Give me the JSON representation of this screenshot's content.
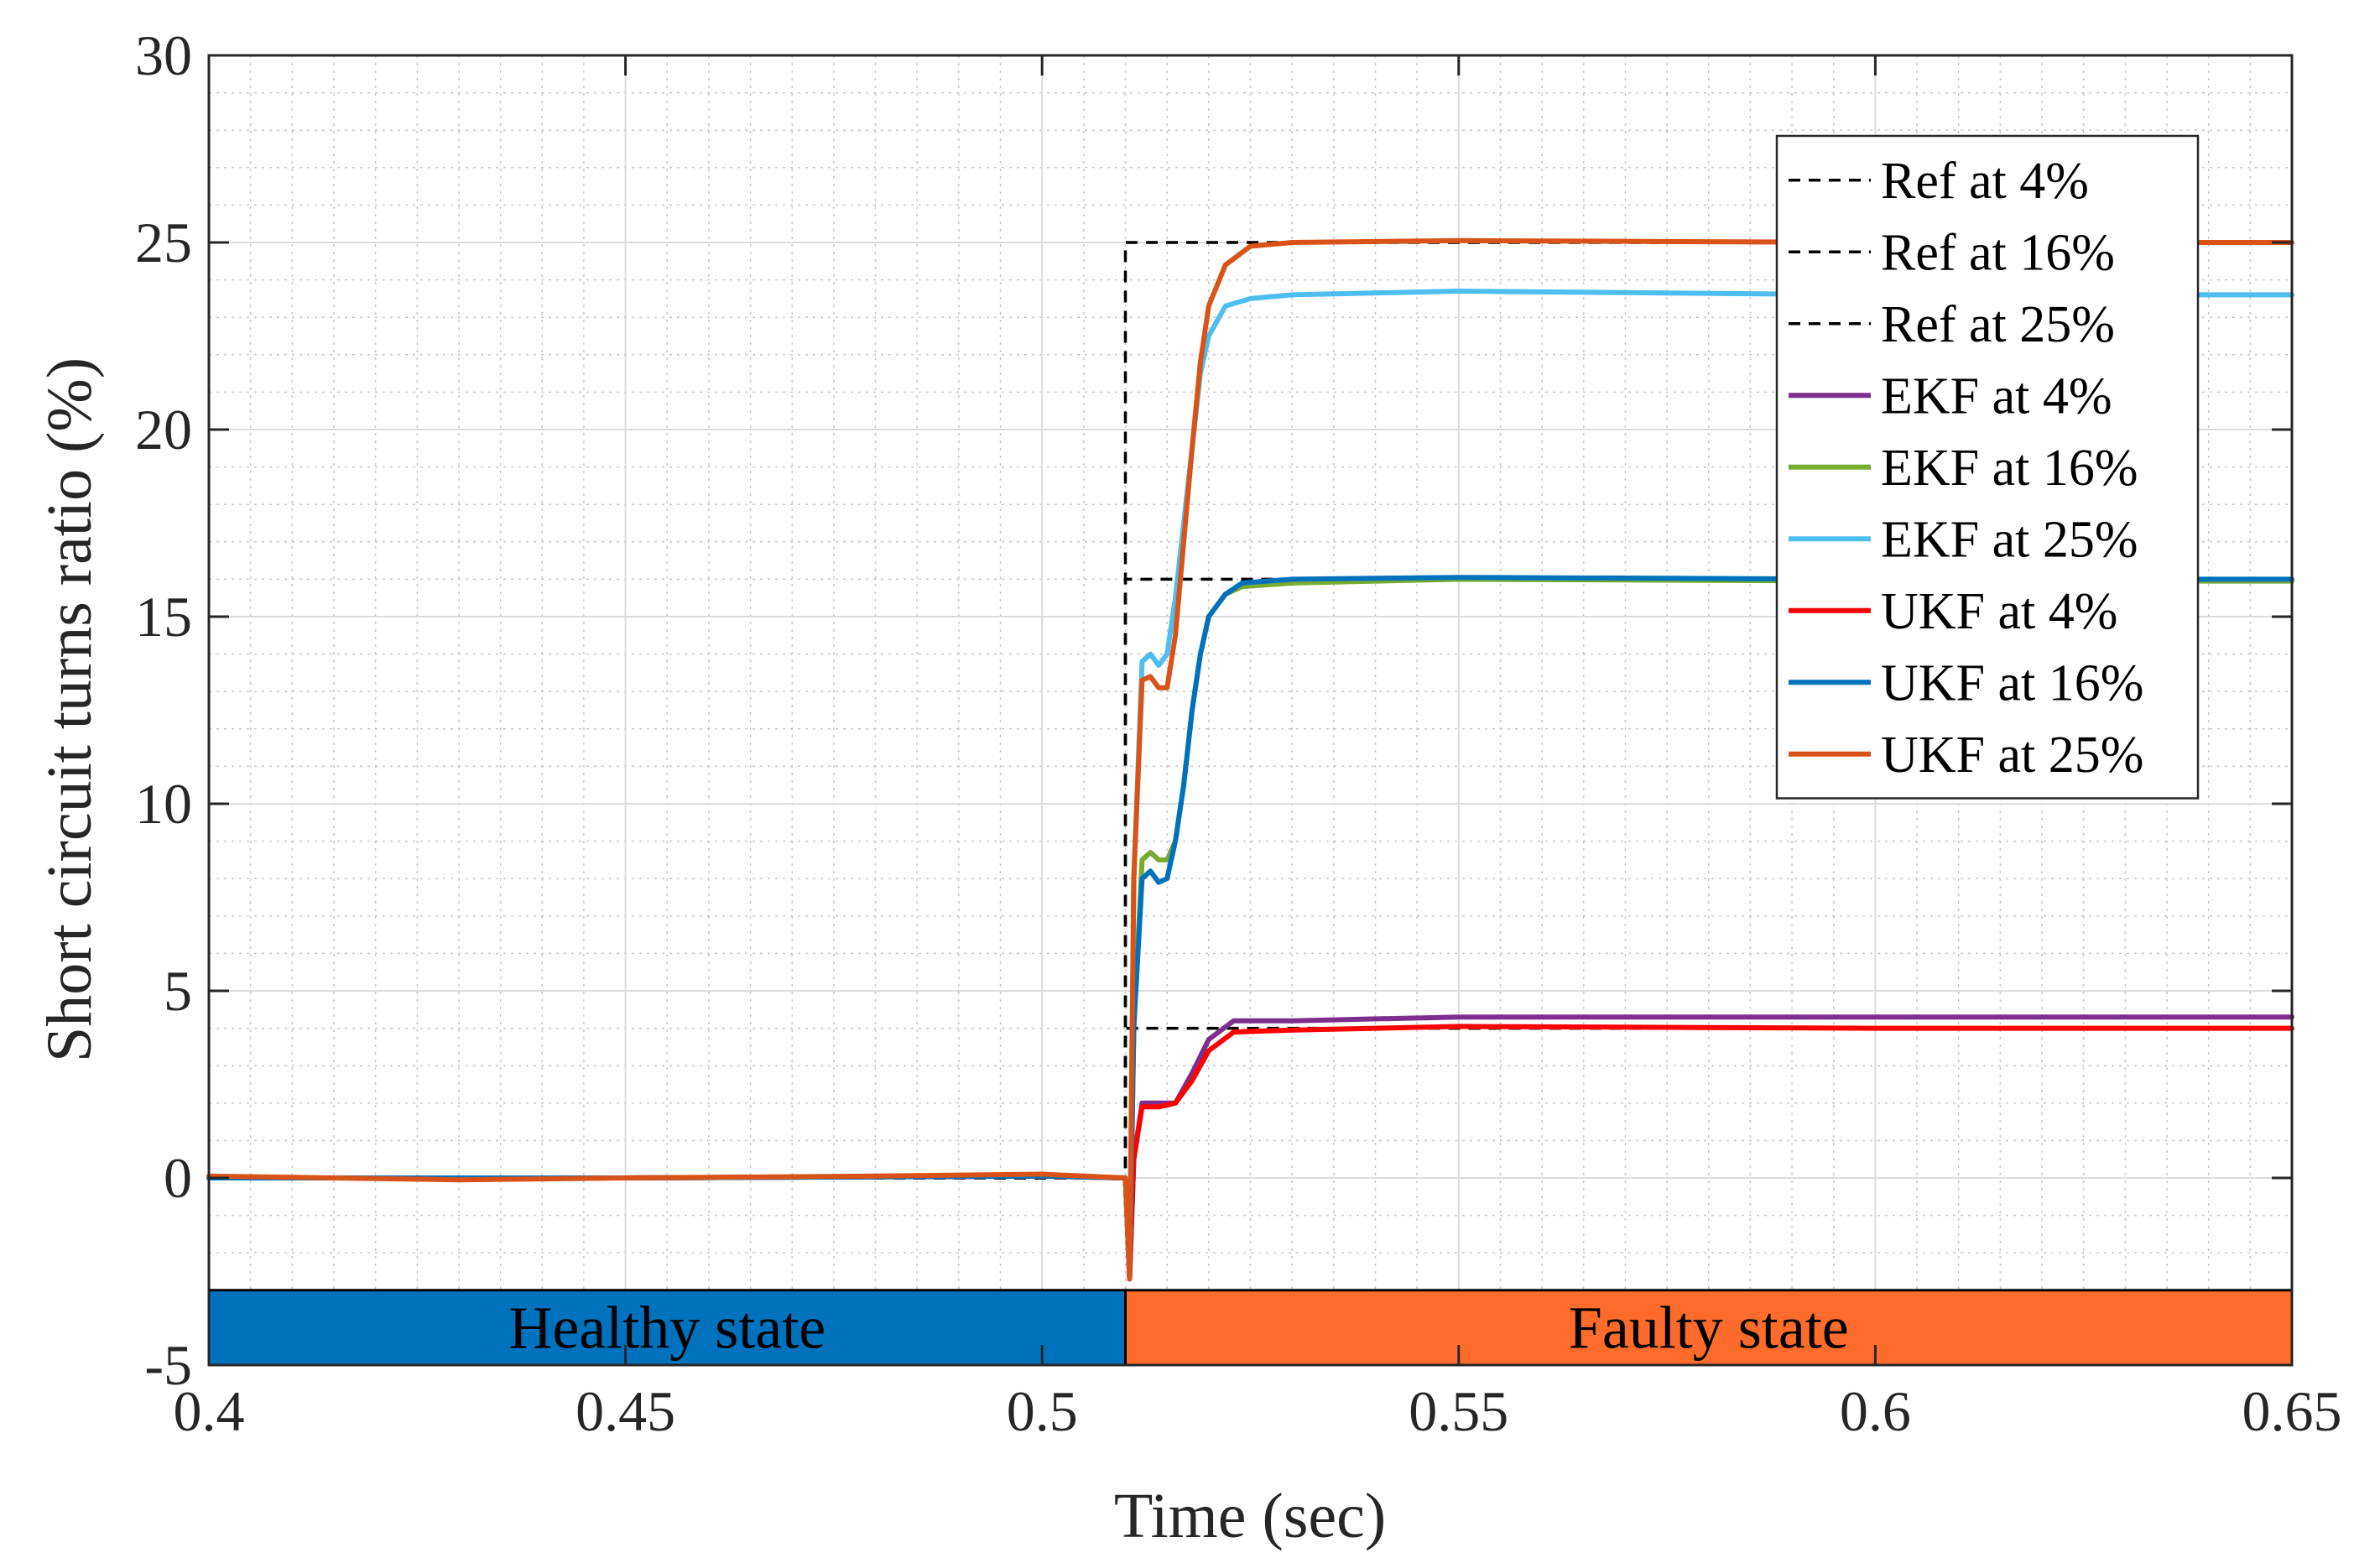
{
  "chart_data": {
    "type": "line",
    "title": "",
    "xlabel": "Time (sec)",
    "ylabel": "Short circuit turns ratio (%)",
    "xlim": [
      0.4,
      0.65
    ],
    "ylim": [
      -5,
      30
    ],
    "xticks": [
      0.4,
      0.45,
      0.5,
      0.55,
      0.6,
      0.65
    ],
    "xtick_labels": [
      "0.4",
      "0.45",
      "0.5",
      "0.55",
      "0.6",
      "0.65"
    ],
    "yticks": [
      -5,
      0,
      5,
      10,
      15,
      20,
      25,
      30
    ],
    "ytick_labels": [
      "-5",
      "0",
      "5",
      "10",
      "15",
      "20",
      "25",
      "30"
    ],
    "grid": true,
    "minor_grid": true,
    "legend_position": "top-right",
    "bands": [
      {
        "label": "Healthy state",
        "x": [
          0.4,
          0.51
        ],
        "y": [
          -5,
          -3
        ],
        "color": "#0072BD"
      },
      {
        "label": "Faulty state",
        "x": [
          0.51,
          0.65
        ],
        "y": [
          -5,
          -3
        ],
        "color": "#FF6B2B"
      }
    ],
    "series": [
      {
        "name": "Ref at 4%",
        "color": "#000000",
        "dash": true,
        "x": [
          0.4,
          0.51,
          0.51,
          0.65
        ],
        "y": [
          0,
          0,
          4,
          4
        ]
      },
      {
        "name": "Ref at 16%",
        "color": "#000000",
        "dash": true,
        "x": [
          0.4,
          0.51,
          0.51,
          0.65
        ],
        "y": [
          0,
          0,
          16,
          16
        ]
      },
      {
        "name": "Ref at 25%",
        "color": "#000000",
        "dash": true,
        "x": [
          0.4,
          0.51,
          0.51,
          0.65
        ],
        "y": [
          0,
          0,
          25,
          25
        ]
      },
      {
        "name": "EKF at 4%",
        "color": "#7E2F8E",
        "dash": false,
        "x": [
          0.4,
          0.45,
          0.5,
          0.51,
          0.5105,
          0.511,
          0.512,
          0.514,
          0.516,
          0.518,
          0.52,
          0.523,
          0.53,
          0.55,
          0.6,
          0.65
        ],
        "y": [
          0,
          0,
          0.05,
          0,
          -2.7,
          0.5,
          2.0,
          2.0,
          2.0,
          2.8,
          3.7,
          4.2,
          4.2,
          4.3,
          4.3,
          4.3
        ]
      },
      {
        "name": "EKF at 16%",
        "color": "#77AC30",
        "dash": false,
        "x": [
          0.4,
          0.45,
          0.5,
          0.51,
          0.5105,
          0.511,
          0.512,
          0.513,
          0.514,
          0.515,
          0.516,
          0.517,
          0.518,
          0.519,
          0.52,
          0.522,
          0.524,
          0.53,
          0.55,
          0.6,
          0.65
        ],
        "y": [
          0,
          0,
          0.05,
          0,
          -2.7,
          4.0,
          8.5,
          8.7,
          8.5,
          8.5,
          9.0,
          10.5,
          12.5,
          14.0,
          15.0,
          15.6,
          15.8,
          15.9,
          16.0,
          15.95,
          15.95
        ]
      },
      {
        "name": "EKF at 25%",
        "color": "#4DBEEE",
        "dash": false,
        "x": [
          0.4,
          0.45,
          0.5,
          0.51,
          0.5105,
          0.511,
          0.512,
          0.513,
          0.514,
          0.515,
          0.516,
          0.517,
          0.518,
          0.519,
          0.52,
          0.522,
          0.525,
          0.53,
          0.55,
          0.6,
          0.65
        ],
        "y": [
          0,
          0,
          0.05,
          0,
          -2.7,
          8.0,
          13.8,
          14.0,
          13.7,
          14.0,
          15.5,
          17.5,
          19.5,
          21.5,
          22.5,
          23.3,
          23.5,
          23.6,
          23.7,
          23.6,
          23.6
        ]
      },
      {
        "name": "UKF at 4%",
        "color": "#FF0000",
        "dash": false,
        "x": [
          0.4,
          0.45,
          0.5,
          0.51,
          0.5105,
          0.511,
          0.512,
          0.514,
          0.516,
          0.518,
          0.52,
          0.523,
          0.53,
          0.55,
          0.6,
          0.65
        ],
        "y": [
          0,
          0,
          0.05,
          0,
          -2.7,
          0.5,
          1.9,
          1.9,
          2.0,
          2.6,
          3.4,
          3.9,
          3.95,
          4.05,
          4.0,
          4.0
        ]
      },
      {
        "name": "UKF at 16%",
        "color": "#0072BD",
        "dash": false,
        "x": [
          0.4,
          0.45,
          0.5,
          0.51,
          0.5105,
          0.511,
          0.512,
          0.513,
          0.514,
          0.515,
          0.516,
          0.517,
          0.518,
          0.519,
          0.52,
          0.522,
          0.524,
          0.53,
          0.55,
          0.6,
          0.65
        ],
        "y": [
          0,
          0,
          0.05,
          0,
          -2.7,
          4.0,
          8.0,
          8.2,
          7.9,
          8.0,
          9.0,
          10.5,
          12.5,
          14.0,
          15.0,
          15.6,
          15.9,
          16.0,
          16.05,
          16.0,
          16.0
        ]
      },
      {
        "name": "UKF at 25%",
        "color": "#D95319",
        "dash": false,
        "x": [
          0.4,
          0.43,
          0.45,
          0.48,
          0.5,
          0.505,
          0.51,
          0.5105,
          0.511,
          0.512,
          0.513,
          0.514,
          0.515,
          0.516,
          0.517,
          0.518,
          0.519,
          0.52,
          0.522,
          0.525,
          0.53,
          0.55,
          0.6,
          0.65
        ],
        "y": [
          0.05,
          -0.05,
          0,
          0.05,
          0.1,
          0.05,
          0,
          -2.7,
          8.0,
          13.3,
          13.4,
          13.1,
          13.1,
          14.5,
          17.0,
          19.5,
          21.8,
          23.3,
          24.4,
          24.9,
          25.0,
          25.05,
          25.0,
          25.0
        ]
      }
    ]
  }
}
